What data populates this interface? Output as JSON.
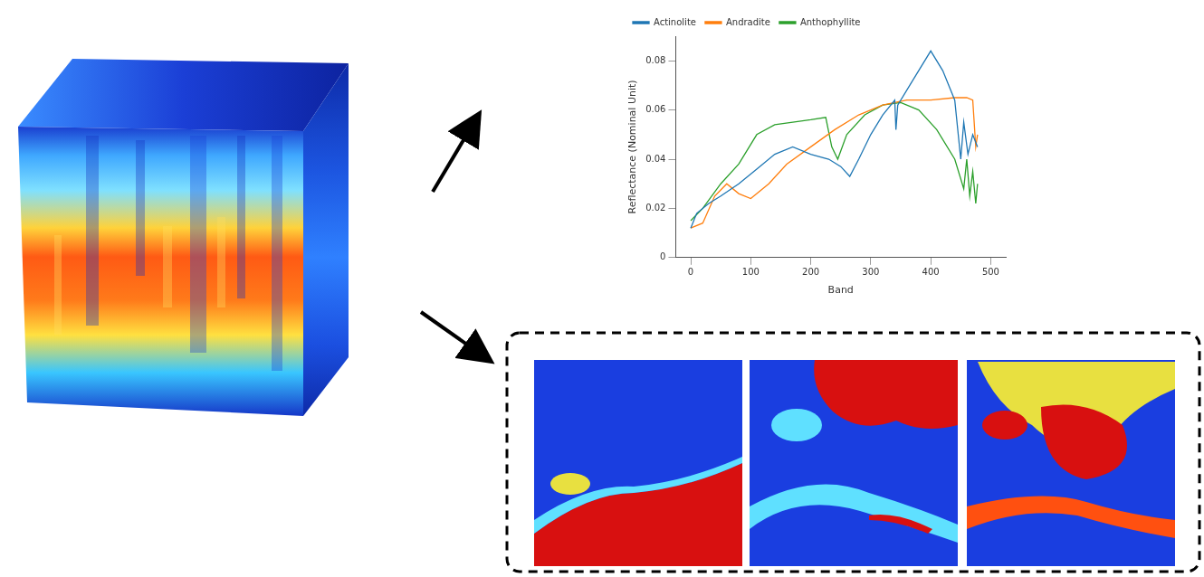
{
  "chart_data": {
    "type": "line",
    "x_label": "Band",
    "y_label": "Reflectance (Nominal Unit)",
    "xlim": [
      -25,
      525
    ],
    "xticks": [
      0,
      100,
      200,
      300,
      400,
      500
    ],
    "ylim": [
      0,
      0.09
    ],
    "yticks": [
      0,
      0.02,
      0.04,
      0.06,
      0.08
    ],
    "grid": false,
    "legend": "top",
    "series": [
      {
        "name": "Actinolite",
        "color": "#1f77b4",
        "x": [
          0,
          10,
          30,
          50,
          80,
          110,
          140,
          170,
          200,
          230,
          250,
          265,
          280,
          300,
          320,
          340,
          342,
          345,
          370,
          400,
          420,
          440,
          450,
          455,
          462,
          470,
          478
        ],
        "values": [
          0.012,
          0.018,
          0.022,
          0.025,
          0.03,
          0.036,
          0.042,
          0.045,
          0.042,
          0.04,
          0.037,
          0.033,
          0.04,
          0.05,
          0.058,
          0.064,
          0.052,
          0.062,
          0.072,
          0.084,
          0.076,
          0.064,
          0.04,
          0.055,
          0.042,
          0.05,
          0.045
        ]
      },
      {
        "name": "Andradite",
        "color": "#ff7f0e",
        "x": [
          0,
          20,
          40,
          60,
          80,
          100,
          130,
          160,
          200,
          240,
          280,
          320,
          360,
          400,
          440,
          460,
          470,
          475,
          478
        ],
        "values": [
          0.012,
          0.014,
          0.025,
          0.03,
          0.026,
          0.024,
          0.03,
          0.038,
          0.045,
          0.052,
          0.058,
          0.062,
          0.064,
          0.064,
          0.065,
          0.065,
          0.064,
          0.045,
          0.05
        ]
      },
      {
        "name": "Anthophyllite",
        "color": "#2ca02c",
        "x": [
          0,
          20,
          50,
          80,
          110,
          140,
          170,
          200,
          225,
          235,
          245,
          260,
          290,
          320,
          350,
          380,
          410,
          440,
          455,
          460,
          465,
          470,
          475,
          478
        ],
        "values": [
          0.015,
          0.02,
          0.03,
          0.038,
          0.05,
          0.054,
          0.055,
          0.056,
          0.057,
          0.045,
          0.04,
          0.05,
          0.058,
          0.062,
          0.063,
          0.06,
          0.052,
          0.04,
          0.028,
          0.04,
          0.025,
          0.035,
          0.022,
          0.03
        ]
      }
    ]
  }
}
